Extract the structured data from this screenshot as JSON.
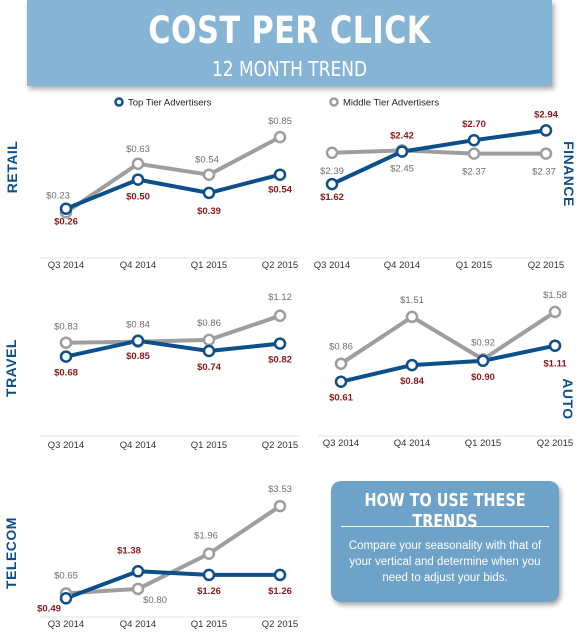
{
  "header": {
    "title": "COST PER CLICK",
    "subtitle": "12 MONTH TREND"
  },
  "legend": [
    {
      "name": "Top Tier Advertisers",
      "color": "#0d4f8b"
    },
    {
      "name": "Middle Tier Advertisers",
      "color": "#9e9e9e"
    }
  ],
  "colors": {
    "top": "#0d4f8b",
    "middle": "#9e9e9e",
    "top_label": "#8b1a1a",
    "middle_label": "#6f6f6f"
  },
  "chart_data": [
    {
      "type": "line",
      "title": "RETAIL",
      "x": [
        "Q3 2014",
        "Q4 2014",
        "Q1 2015",
        "Q2 2015"
      ],
      "series": [
        {
          "name": "Top Tier Advertisers",
          "values": [
            0.26,
            0.5,
            0.39,
            0.54
          ]
        },
        {
          "name": "Middle Tier Advertisers",
          "values": [
            0.23,
            0.63,
            0.54,
            0.85
          ]
        }
      ]
    },
    {
      "type": "line",
      "title": "FINANCE",
      "x": [
        "Q3 2014",
        "Q4 2014",
        "Q1 2015",
        "Q2 2015"
      ],
      "series": [
        {
          "name": "Top Tier Advertisers",
          "values": [
            1.62,
            2.42,
            2.7,
            2.94
          ]
        },
        {
          "name": "Middle Tier Advertisers",
          "values": [
            2.39,
            2.45,
            2.37,
            2.37
          ]
        }
      ]
    },
    {
      "type": "line",
      "title": "TRAVEL",
      "x": [
        "Q3 2014",
        "Q4 2014",
        "Q1 2015",
        "Q2 2015"
      ],
      "series": [
        {
          "name": "Top Tier Advertisers",
          "values": [
            0.68,
            0.85,
            0.74,
            0.82
          ]
        },
        {
          "name": "Middle Tier Advertisers",
          "values": [
            0.83,
            0.84,
            0.86,
            1.12
          ]
        }
      ]
    },
    {
      "type": "line",
      "title": "AUTO",
      "x": [
        "Q3 2014",
        "Q4 2014",
        "Q1 2015",
        "Q2 2015"
      ],
      "series": [
        {
          "name": "Top Tier Advertisers",
          "values": [
            0.61,
            0.84,
            0.9,
            1.11
          ]
        },
        {
          "name": "Middle Tier Advertisers",
          "values": [
            0.86,
            1.51,
            0.92,
            1.58
          ]
        }
      ]
    },
    {
      "type": "line",
      "title": "TELECOM",
      "x": [
        "Q3 2014",
        "Q4 2014",
        "Q1 2015",
        "Q2 2015"
      ],
      "series": [
        {
          "name": "Top Tier Advertisers",
          "values": [
            0.49,
            1.38,
            1.26,
            1.26
          ]
        },
        {
          "name": "Middle Tier Advertisers",
          "values": [
            0.65,
            0.8,
            1.96,
            3.53
          ]
        }
      ]
    }
  ],
  "tips": {
    "title": "HOW TO USE THESE TRENDS",
    "body": "Compare your seasonality with that of your vertical and determine when you need to adjust your bids."
  }
}
